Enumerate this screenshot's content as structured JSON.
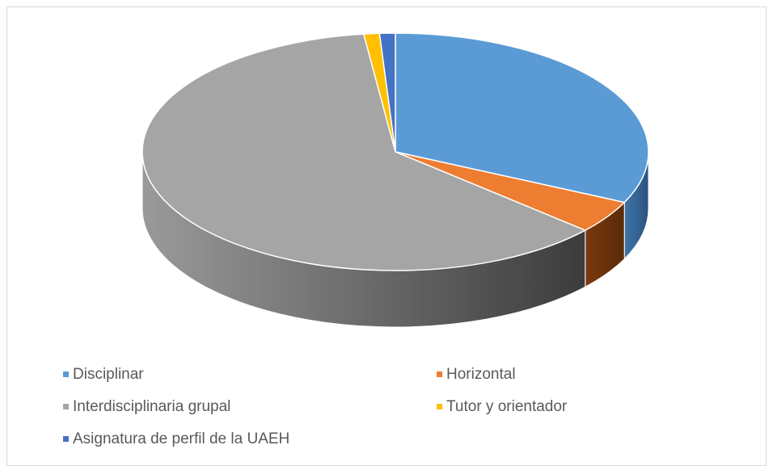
{
  "chart_data": {
    "type": "pie3d",
    "categories": [
      "Disciplinar",
      "Horizontal",
      "Interdisciplinaria grupal",
      "Tutor y orientador",
      "Asignatura de perfil de la UAEH"
    ],
    "values": [
      32,
      4.5,
      61.5,
      1,
      1
    ],
    "colors": [
      "#5b9bd5",
      "#ed7d31",
      "#a5a5a5",
      "#ffc000",
      "#4472c4"
    ],
    "side_colors": [
      [
        "#3f75a8",
        "#2a5380"
      ],
      [
        "#7a3a0e",
        "#5a2a08"
      ],
      [
        "#9a9a9a",
        "#3c3c3c"
      ],
      [
        "#b08500",
        "#806000"
      ],
      [
        "#2f5597",
        "#1f3b6b"
      ]
    ],
    "legend": "bottom"
  }
}
